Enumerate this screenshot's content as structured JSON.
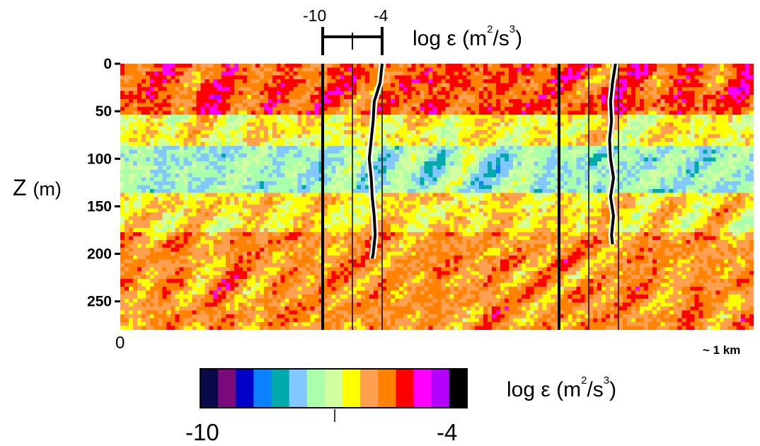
{
  "chart_data": {
    "type": "heatmap",
    "title": "",
    "ylabel": "Z (m)",
    "y_label_parts": {
      "symbol": "Z",
      "unit": "(m)"
    },
    "y_ticks": [
      "0",
      "50",
      "100",
      "150",
      "200",
      "250"
    ],
    "y_tick_values": [
      0,
      50,
      100,
      150,
      200,
      250
    ],
    "ylim": [
      0,
      280
    ],
    "x_tick_start": "0",
    "x_tick_end": "~ 1 km",
    "field": "log ε (m²/s³)",
    "unit_label": {
      "base": "log ε (m",
      "sup1": "2",
      "mid": "/s",
      "sup2": "3",
      "end": ")"
    },
    "colorbar": {
      "min_label": "-10",
      "max_label": "-4",
      "range": [
        -10,
        -4
      ],
      "colors": [
        "#0a0a4a",
        "#7a0a7a",
        "#0000c8",
        "#0a82ff",
        "#00aaaa",
        "#82c8ff",
        "#aaffaa",
        "#d2ffa0",
        "#ffff00",
        "#ffa050",
        "#ff8200",
        "#ff0000",
        "#ff00ff",
        "#b400ff",
        "#000000"
      ]
    },
    "profile_scale": {
      "min_label": "-10",
      "max_label": "-4",
      "range": [
        -10,
        -4
      ]
    },
    "profiles": [
      {
        "depth": [
          0,
          20,
          40,
          60,
          80,
          100,
          120,
          140,
          160,
          180,
          200,
          205
        ],
        "log_eps": [
          -4.0,
          -4.2,
          -4.8,
          -4.9,
          -5.1,
          -5.3,
          -5.1,
          -5.0,
          -4.8,
          -4.7,
          -4.9,
          -5.0
        ]
      },
      {
        "depth": [
          0,
          20,
          40,
          60,
          80,
          100,
          120,
          140,
          160,
          180,
          190
        ],
        "log_eps": [
          -4.3,
          -4.6,
          -4.8,
          -4.7,
          -4.9,
          -4.8,
          -4.5,
          -4.8,
          -4.5,
          -4.7,
          -4.6
        ]
      }
    ]
  }
}
